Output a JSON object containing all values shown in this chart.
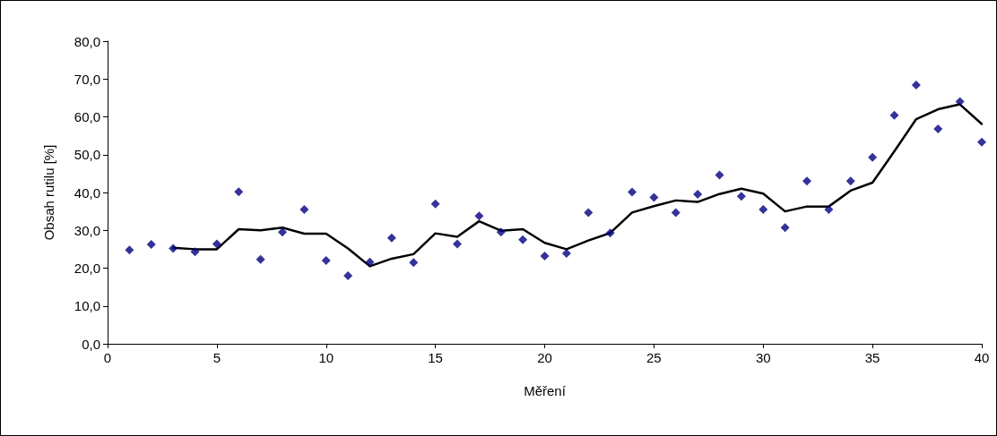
{
  "chart_data": {
    "type": "scatter",
    "xlabel": "Měření",
    "ylabel": "Obsah rutilu [%]",
    "x": [
      1,
      2,
      3,
      4,
      5,
      6,
      7,
      8,
      9,
      10,
      11,
      12,
      13,
      14,
      15,
      16,
      17,
      18,
      19,
      20,
      21,
      22,
      23,
      24,
      25,
      26,
      27,
      28,
      29,
      30,
      31,
      32,
      33,
      34,
      35,
      36,
      37,
      38,
      39,
      40
    ],
    "series": [
      {
        "color": "#000080",
        "marker": "diamond",
        "values": [
          24.8,
          26.3,
          25.2,
          24.3,
          26.4,
          40.2,
          22.3,
          29.5,
          35.5,
          22.0,
          18.0,
          21.6,
          28.0,
          21.5,
          37.0,
          26.4,
          33.8,
          29.5,
          27.5,
          23.2,
          23.9,
          34.7,
          29.3,
          40.1,
          38.7,
          34.7,
          39.5,
          44.6,
          39.0,
          35.5,
          30.7,
          43.0,
          35.5,
          43.0,
          49.3,
          60.4,
          68.4,
          56.8,
          64.0,
          53.3
        ]
      },
      {
        "type": "line",
        "color": "#000000",
        "marker": "none",
        "line_style": "solid",
        "x": [
          3,
          4,
          5,
          6,
          7,
          8,
          9,
          10,
          11,
          12,
          13,
          14,
          15,
          16,
          17,
          18,
          19,
          20,
          21,
          22,
          23,
          24,
          25,
          26,
          27,
          28,
          29,
          30,
          31,
          32,
          33,
          34,
          35,
          36,
          37,
          38,
          39,
          40
        ],
        "values": [
          25.4,
          25.0,
          25.0,
          30.3,
          30.0,
          30.7,
          29.1,
          29.1,
          25.2,
          20.5,
          22.5,
          23.7,
          29.2,
          28.3,
          32.4,
          29.9,
          30.3,
          26.7,
          25.0,
          27.3,
          29.3,
          34.7,
          36.4,
          37.9,
          37.5,
          39.6,
          41.0,
          39.7,
          35.0,
          36.3,
          36.3,
          40.5,
          42.6,
          50.9,
          59.4,
          62.0,
          63.3,
          58.1
        ]
      }
    ],
    "xlim": [
      0,
      40
    ],
    "xticks": [
      0,
      5,
      10,
      15,
      20,
      25,
      30,
      35,
      40
    ],
    "ylim": [
      0,
      80
    ],
    "yticks": [
      {
        "value": 0,
        "label": "0,0"
      },
      {
        "value": 10,
        "label": "10,0"
      },
      {
        "value": 20,
        "label": "20,0"
      },
      {
        "value": 30,
        "label": "30,0"
      },
      {
        "value": 40,
        "label": "40,0"
      },
      {
        "value": 50,
        "label": "50,0"
      },
      {
        "value": 60,
        "label": "60,0"
      },
      {
        "value": 70,
        "label": "70,0"
      },
      {
        "value": 80,
        "label": "80,0"
      }
    ],
    "grid": false
  }
}
